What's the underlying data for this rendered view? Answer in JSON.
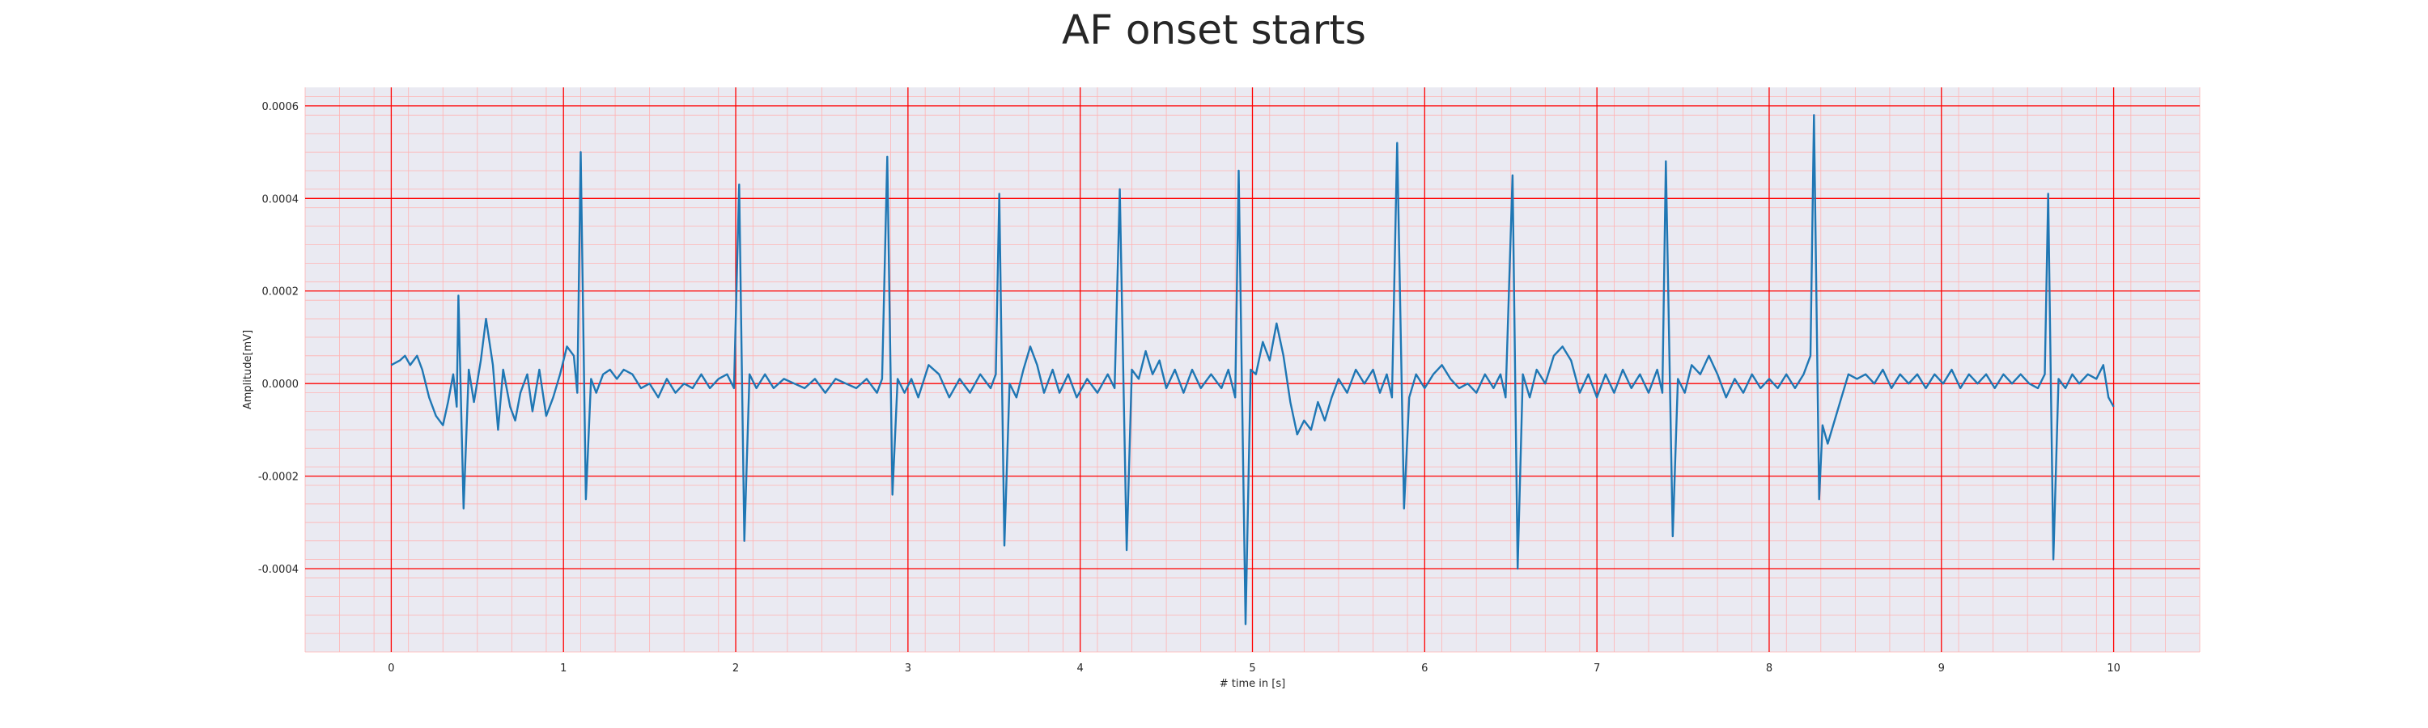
{
  "chart_data": {
    "type": "line",
    "title": "AF onset starts",
    "xlabel": "# time in [s]",
    "ylabel": "Amplitude[mV]",
    "xlim": [
      -0.5,
      10.5
    ],
    "ylim": [
      -0.00058,
      0.00064
    ],
    "x_ticks": [
      0,
      1,
      2,
      3,
      4,
      5,
      6,
      7,
      8,
      9,
      10
    ],
    "x_tick_labels": [
      "0",
      "1",
      "2",
      "3",
      "4",
      "5",
      "6",
      "7",
      "8",
      "9",
      "10"
    ],
    "y_ticks": [
      -0.0004,
      -0.0002,
      0.0,
      0.0002,
      0.0004,
      0.0006
    ],
    "y_tick_labels": [
      "-0.0004",
      "-0.0002",
      "0.0000",
      "0.0002",
      "0.0004",
      "0.0006"
    ],
    "grid": "major and minor",
    "colors": {
      "line": "#1f77b4",
      "background": "#eaeaf2",
      "major_grid": "#ff0000",
      "minor_grid": "#ffb3b3"
    },
    "series": [
      {
        "points": [
          [
            0.0,
            4e-05
          ],
          [
            0.05,
            5e-05
          ],
          [
            0.08,
            6e-05
          ],
          [
            0.11,
            4e-05
          ],
          [
            0.15,
            6e-05
          ],
          [
            0.18,
            3e-05
          ],
          [
            0.22,
            -3e-05
          ],
          [
            0.26,
            -7e-05
          ],
          [
            0.3,
            -9e-05
          ],
          [
            0.33,
            -4e-05
          ],
          [
            0.36,
            2e-05
          ],
          [
            0.38,
            -5e-05
          ],
          [
            0.39,
            0.00019
          ],
          [
            0.42,
            -0.00027
          ],
          [
            0.45,
            3e-05
          ],
          [
            0.48,
            -4e-05
          ],
          [
            0.52,
            5e-05
          ],
          [
            0.55,
            0.00014
          ],
          [
            0.59,
            4e-05
          ],
          [
            0.62,
            -0.0001
          ],
          [
            0.65,
            3e-05
          ],
          [
            0.69,
            -5e-05
          ],
          [
            0.72,
            -8e-05
          ],
          [
            0.75,
            -2e-05
          ],
          [
            0.79,
            2e-05
          ],
          [
            0.82,
            -6e-05
          ],
          [
            0.86,
            3e-05
          ],
          [
            0.9,
            -7e-05
          ],
          [
            0.94,
            -3e-05
          ],
          [
            0.98,
            2e-05
          ],
          [
            1.02,
            8e-05
          ],
          [
            1.06,
            6e-05
          ],
          [
            1.08,
            -2e-05
          ],
          [
            1.1,
            0.0005
          ],
          [
            1.13,
            -0.00025
          ],
          [
            1.16,
            1e-05
          ],
          [
            1.19,
            -2e-05
          ],
          [
            1.23,
            2e-05
          ],
          [
            1.27,
            3e-05
          ],
          [
            1.31,
            1e-05
          ],
          [
            1.35,
            3e-05
          ],
          [
            1.4,
            2e-05
          ],
          [
            1.45,
            -1e-05
          ],
          [
            1.5,
            0.0
          ],
          [
            1.55,
            -3e-05
          ],
          [
            1.6,
            1e-05
          ],
          [
            1.65,
            -2e-05
          ],
          [
            1.7,
            0.0
          ],
          [
            1.75,
            -1e-05
          ],
          [
            1.8,
            2e-05
          ],
          [
            1.85,
            -1e-05
          ],
          [
            1.9,
            1e-05
          ],
          [
            1.95,
            2e-05
          ],
          [
            1.99,
            -1e-05
          ],
          [
            2.02,
            0.00043
          ],
          [
            2.05,
            -0.00034
          ],
          [
            2.08,
            2e-05
          ],
          [
            2.12,
            -1e-05
          ],
          [
            2.17,
            2e-05
          ],
          [
            2.22,
            -1e-05
          ],
          [
            2.28,
            1e-05
          ],
          [
            2.34,
            0.0
          ],
          [
            2.4,
            -1e-05
          ],
          [
            2.46,
            1e-05
          ],
          [
            2.52,
            -2e-05
          ],
          [
            2.58,
            1e-05
          ],
          [
            2.64,
            0.0
          ],
          [
            2.7,
            -1e-05
          ],
          [
            2.76,
            1e-05
          ],
          [
            2.82,
            -2e-05
          ],
          [
            2.85,
            1e-05
          ],
          [
            2.88,
            0.00049
          ],
          [
            2.91,
            -0.00024
          ],
          [
            2.94,
            1e-05
          ],
          [
            2.98,
            -2e-05
          ],
          [
            3.02,
            1e-05
          ],
          [
            3.06,
            -3e-05
          ],
          [
            3.12,
            4e-05
          ],
          [
            3.18,
            2e-05
          ],
          [
            3.24,
            -3e-05
          ],
          [
            3.3,
            1e-05
          ],
          [
            3.36,
            -2e-05
          ],
          [
            3.42,
            2e-05
          ],
          [
            3.48,
            -1e-05
          ],
          [
            3.51,
            2e-05
          ],
          [
            3.53,
            0.00041
          ],
          [
            3.56,
            -0.00035
          ],
          [
            3.59,
            0.0
          ],
          [
            3.63,
            -3e-05
          ],
          [
            3.67,
            3e-05
          ],
          [
            3.71,
            8e-05
          ],
          [
            3.75,
            4e-05
          ],
          [
            3.79,
            -2e-05
          ],
          [
            3.84,
            3e-05
          ],
          [
            3.88,
            -2e-05
          ],
          [
            3.93,
            2e-05
          ],
          [
            3.98,
            -3e-05
          ],
          [
            4.04,
            1e-05
          ],
          [
            4.1,
            -2e-05
          ],
          [
            4.16,
            2e-05
          ],
          [
            4.2,
            -1e-05
          ],
          [
            4.23,
            0.00042
          ],
          [
            4.27,
            -0.00036
          ],
          [
            4.3,
            3e-05
          ],
          [
            4.34,
            1e-05
          ],
          [
            4.38,
            7e-05
          ],
          [
            4.42,
            2e-05
          ],
          [
            4.46,
            5e-05
          ],
          [
            4.5,
            -1e-05
          ],
          [
            4.55,
            3e-05
          ],
          [
            4.6,
            -2e-05
          ],
          [
            4.65,
            3e-05
          ],
          [
            4.7,
            -1e-05
          ],
          [
            4.76,
            2e-05
          ],
          [
            4.82,
            -1e-05
          ],
          [
            4.86,
            3e-05
          ],
          [
            4.9,
            -3e-05
          ],
          [
            4.92,
            0.00046
          ],
          [
            4.96,
            -0.00052
          ],
          [
            4.99,
            3e-05
          ],
          [
            5.02,
            2e-05
          ],
          [
            5.06,
            9e-05
          ],
          [
            5.1,
            5e-05
          ],
          [
            5.14,
            0.00013
          ],
          [
            5.18,
            6e-05
          ],
          [
            5.22,
            -4e-05
          ],
          [
            5.26,
            -0.00011
          ],
          [
            5.3,
            -8e-05
          ],
          [
            5.34,
            -0.0001
          ],
          [
            5.38,
            -4e-05
          ],
          [
            5.42,
            -8e-05
          ],
          [
            5.46,
            -3e-05
          ],
          [
            5.5,
            1e-05
          ],
          [
            5.55,
            -2e-05
          ],
          [
            5.6,
            3e-05
          ],
          [
            5.65,
            0.0
          ],
          [
            5.7,
            3e-05
          ],
          [
            5.74,
            -2e-05
          ],
          [
            5.78,
            2e-05
          ],
          [
            5.81,
            -3e-05
          ],
          [
            5.84,
            0.00052
          ],
          [
            5.88,
            -0.00027
          ],
          [
            5.91,
            -3e-05
          ],
          [
            5.95,
            2e-05
          ],
          [
            6.0,
            -1e-05
          ],
          [
            6.05,
            2e-05
          ],
          [
            6.1,
            4e-05
          ],
          [
            6.15,
            1e-05
          ],
          [
            6.2,
            -1e-05
          ],
          [
            6.25,
            0.0
          ],
          [
            6.3,
            -2e-05
          ],
          [
            6.35,
            2e-05
          ],
          [
            6.4,
            -1e-05
          ],
          [
            6.44,
            2e-05
          ],
          [
            6.47,
            -3e-05
          ],
          [
            6.51,
            0.00045
          ],
          [
            6.54,
            -0.0004
          ],
          [
            6.57,
            2e-05
          ],
          [
            6.61,
            -3e-05
          ],
          [
            6.65,
            3e-05
          ],
          [
            6.7,
            0.0
          ],
          [
            6.75,
            6e-05
          ],
          [
            6.8,
            8e-05
          ],
          [
            6.85,
            5e-05
          ],
          [
            6.9,
            -2e-05
          ],
          [
            6.95,
            2e-05
          ],
          [
            7.0,
            -3e-05
          ],
          [
            7.05,
            2e-05
          ],
          [
            7.1,
            -2e-05
          ],
          [
            7.15,
            3e-05
          ],
          [
            7.2,
            -1e-05
          ],
          [
            7.25,
            2e-05
          ],
          [
            7.3,
            -2e-05
          ],
          [
            7.35,
            3e-05
          ],
          [
            7.38,
            -2e-05
          ],
          [
            7.4,
            0.00048
          ],
          [
            7.44,
            -0.00033
          ],
          [
            7.47,
            1e-05
          ],
          [
            7.51,
            -2e-05
          ],
          [
            7.55,
            4e-05
          ],
          [
            7.6,
            2e-05
          ],
          [
            7.65,
            6e-05
          ],
          [
            7.7,
            2e-05
          ],
          [
            7.75,
            -3e-05
          ],
          [
            7.8,
            1e-05
          ],
          [
            7.85,
            -2e-05
          ],
          [
            7.9,
            2e-05
          ],
          [
            7.95,
            -1e-05
          ],
          [
            8.0,
            1e-05
          ],
          [
            8.05,
            -1e-05
          ],
          [
            8.1,
            2e-05
          ],
          [
            8.15,
            -1e-05
          ],
          [
            8.2,
            2e-05
          ],
          [
            8.24,
            6e-05
          ],
          [
            8.26,
            0.00058
          ],
          [
            8.29,
            -0.00025
          ],
          [
            8.31,
            -9e-05
          ],
          [
            8.34,
            -0.00013
          ],
          [
            8.38,
            -8e-05
          ],
          [
            8.42,
            -3e-05
          ],
          [
            8.46,
            2e-05
          ],
          [
            8.51,
            1e-05
          ],
          [
            8.56,
            2e-05
          ],
          [
            8.61,
            0.0
          ],
          [
            8.66,
            3e-05
          ],
          [
            8.71,
            -1e-05
          ],
          [
            8.76,
            2e-05
          ],
          [
            8.81,
            0.0
          ],
          [
            8.86,
            2e-05
          ],
          [
            8.91,
            -1e-05
          ],
          [
            8.96,
            2e-05
          ],
          [
            9.01,
            0.0
          ],
          [
            9.06,
            3e-05
          ],
          [
            9.11,
            -1e-05
          ],
          [
            9.16,
            2e-05
          ],
          [
            9.21,
            0.0
          ],
          [
            9.26,
            2e-05
          ],
          [
            9.31,
            -1e-05
          ],
          [
            9.36,
            2e-05
          ],
          [
            9.41,
            0.0
          ],
          [
            9.46,
            2e-05
          ],
          [
            9.51,
            0.0
          ],
          [
            9.56,
            -1e-05
          ],
          [
            9.6,
            2e-05
          ],
          [
            9.62,
            0.00041
          ],
          [
            9.65,
            -0.00038
          ],
          [
            9.68,
            1e-05
          ],
          [
            9.72,
            -1e-05
          ],
          [
            9.76,
            2e-05
          ],
          [
            9.8,
            0.0
          ],
          [
            9.85,
            2e-05
          ],
          [
            9.9,
            1e-05
          ],
          [
            9.94,
            4e-05
          ],
          [
            9.97,
            -3e-05
          ],
          [
            10.0,
            -5e-05
          ]
        ]
      }
    ]
  }
}
